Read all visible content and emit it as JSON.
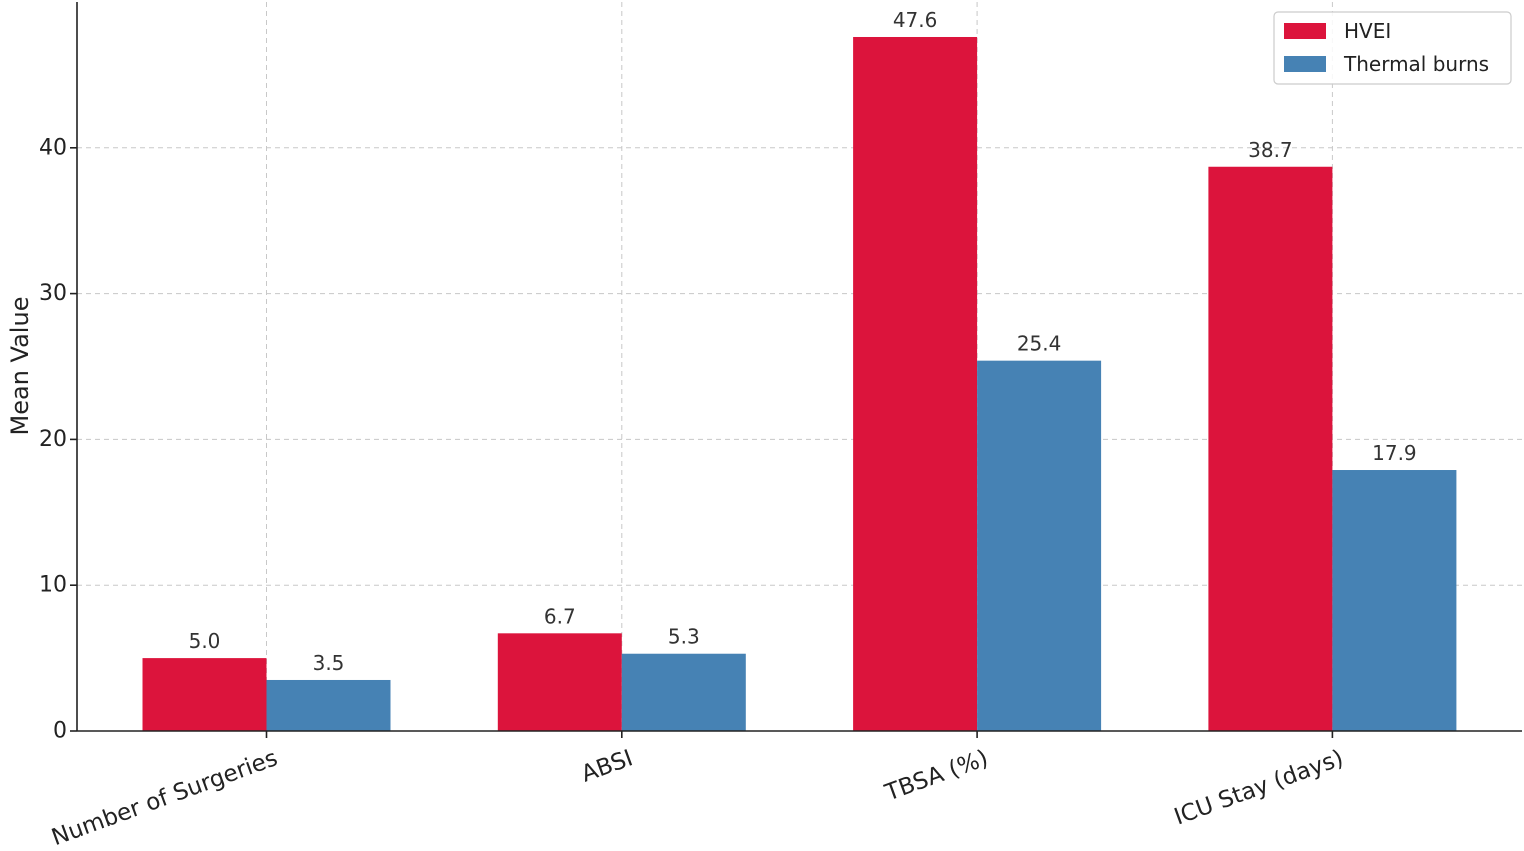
{
  "chart_data": {
    "type": "bar",
    "categories": [
      "Number of Surgeries",
      "ABSI",
      "TBSA (%)",
      "ICU Stay (days)"
    ],
    "series": [
      {
        "name": "HVEI",
        "values": [
          5.0,
          6.7,
          47.6,
          38.7
        ],
        "color": "#dc143c"
      },
      {
        "name": "Thermal burns",
        "values": [
          3.5,
          5.3,
          25.4,
          17.9
        ],
        "color": "#4682b4"
      }
    ],
    "data_labels": [
      [
        "5.0",
        "6.7",
        "47.6",
        "38.7"
      ],
      [
        "3.5",
        "5.3",
        "25.4",
        "17.9"
      ]
    ],
    "title": "",
    "xlabel": "",
    "ylabel": "Mean Value",
    "ylim": [
      0,
      50
    ],
    "yticks": [
      0,
      10,
      20,
      30,
      40
    ],
    "ytick_labels": [
      "0",
      "10",
      "20",
      "30",
      "40"
    ],
    "grid": true,
    "legend_position": "top-right"
  }
}
